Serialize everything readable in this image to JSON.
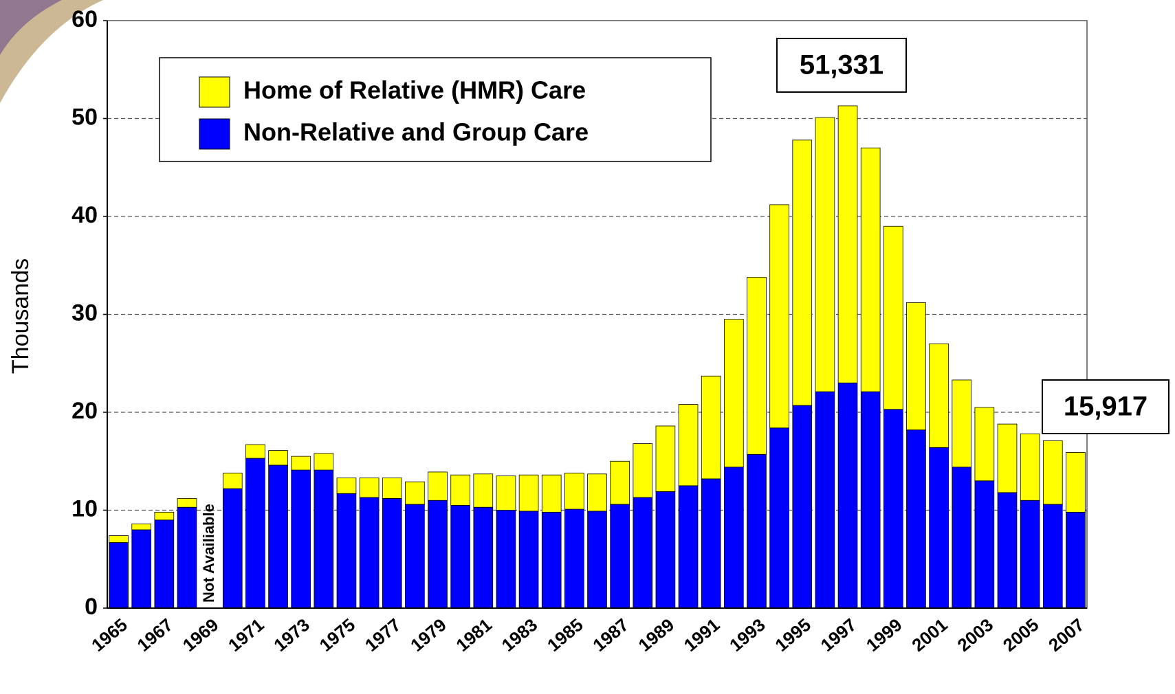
{
  "chart_data": {
    "type": "stacked-bar",
    "y_label": "Thousands",
    "categories": [
      "1965",
      null,
      "1967",
      null,
      "1969",
      null,
      "1971",
      null,
      "1973",
      null,
      "1975",
      null,
      "1977",
      null,
      "1979",
      null,
      "1981",
      null,
      "1983",
      null,
      "1985",
      null,
      "1987",
      null,
      "1989",
      null,
      "1991",
      null,
      "1993",
      null,
      "1995",
      null,
      "1997",
      null,
      "1999",
      null,
      "2001",
      null,
      "2003",
      null,
      "2005",
      null,
      "2007"
    ],
    "series": [
      {
        "name": "Home of Relative (HMR) Care",
        "color": "#ffff00",
        "values": [
          0.7,
          0.6,
          0.8,
          0.9,
          null,
          1.6,
          1.4,
          1.5,
          1.4,
          1.7,
          1.6,
          2.0,
          2.1,
          2.3,
          2.9,
          3.1,
          3.4,
          3.5,
          3.7,
          3.8,
          3.7,
          3.8,
          4.4,
          5.5,
          6.7,
          8.3,
          10.5,
          15.1,
          18.1,
          22.8,
          27.1,
          28.0,
          28.3,
          24.9,
          18.7,
          13.0,
          10.6,
          8.9,
          7.5,
          7.0,
          6.8,
          6.5,
          6.1
        ]
      },
      {
        "name": "Non-Relative and Group Care",
        "color": "#0000ff",
        "values": [
          6.7,
          8.0,
          9.0,
          10.3,
          null,
          12.2,
          15.3,
          14.6,
          14.1,
          14.1,
          11.7,
          11.3,
          11.2,
          10.6,
          11.0,
          10.5,
          10.3,
          10.0,
          9.9,
          9.8,
          10.1,
          9.9,
          10.6,
          11.3,
          11.9,
          12.5,
          13.2,
          14.4,
          15.7,
          18.4,
          20.7,
          22.1,
          23.0,
          22.1,
          20.3,
          18.2,
          16.4,
          14.4,
          13.0,
          11.8,
          11.0,
          10.6,
          9.8
        ]
      }
    ],
    "ylim": [
      0,
      60
    ],
    "yticks": [
      0,
      10,
      20,
      30,
      40,
      50,
      60
    ],
    "grid": true,
    "annotations": [
      "51,331",
      "15,917",
      "Not Availiable"
    ]
  }
}
